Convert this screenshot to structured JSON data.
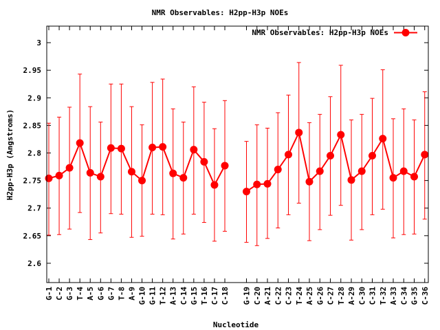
{
  "chart_data": {
    "type": "line",
    "title": "NMR Observables: H2pp-H3p NOEs",
    "xlabel": "Nucleotide",
    "ylabel": "H2pp-H3p (Angstroms)",
    "ylim": [
      2.565,
      3.03
    ],
    "yticks": [
      2.6,
      2.65,
      2.7,
      2.75,
      2.8,
      2.85,
      2.9,
      2.95,
      3
    ],
    "legend_position": "top-right",
    "colors": {
      "series": "#ff0000"
    },
    "categories": [
      "G-1",
      "C-2",
      "G-3",
      "T-4",
      "A-5",
      "G-6",
      "G-7",
      "T-8",
      "A-9",
      "G-10",
      "G-11",
      "T-12",
      "A-13",
      "C-14",
      "G-15",
      "T-16",
      "C-17",
      "C-18",
      "G-19",
      "C-20",
      "A-21",
      "C-22",
      "C-23",
      "T-24",
      "A-25",
      "G-26",
      "C-27",
      "T-28",
      "A-29",
      "C-30",
      "C-31",
      "T-32",
      "A-33",
      "C-34",
      "G-35",
      "C-36"
    ],
    "series": [
      {
        "name": "NMR Observables: H2pp-H3p NOEs",
        "values": [
          2.754,
          2.759,
          2.773,
          2.818,
          2.764,
          2.757,
          2.809,
          2.808,
          2.766,
          2.75,
          2.81,
          2.811,
          2.763,
          2.755,
          2.806,
          2.784,
          2.742,
          2.777,
          2.73,
          2.743,
          2.744,
          2.77,
          2.797,
          2.837,
          2.748,
          2.767,
          2.795,
          2.833,
          2.751,
          2.767,
          2.795,
          2.826,
          2.755,
          2.767,
          2.757,
          2.797
        ],
        "err_low": [
          2.651,
          2.652,
          2.662,
          2.692,
          2.643,
          2.655,
          2.69,
          2.689,
          2.647,
          2.649,
          2.689,
          2.688,
          2.644,
          2.653,
          2.689,
          2.674,
          2.64,
          2.658,
          2.638,
          2.632,
          2.645,
          2.664,
          2.688,
          2.709,
          2.641,
          2.661,
          2.687,
          2.705,
          2.642,
          2.661,
          2.688,
          2.698,
          2.646,
          2.652,
          2.653,
          2.68
        ],
        "err_high": [
          2.854,
          2.865,
          2.883,
          2.943,
          2.884,
          2.856,
          2.925,
          2.925,
          2.884,
          2.851,
          2.928,
          2.934,
          2.88,
          2.856,
          2.92,
          2.892,
          2.844,
          2.895,
          2.821,
          2.851,
          2.845,
          2.873,
          2.905,
          2.964,
          2.855,
          2.87,
          2.902,
          2.959,
          2.86,
          2.87,
          2.899,
          2.951,
          2.862,
          2.88,
          2.86,
          2.911
        ]
      }
    ]
  }
}
